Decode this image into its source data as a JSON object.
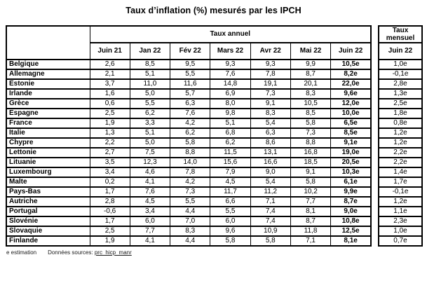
{
  "title": "Taux d’inflation (%) mesurés par les IPCH",
  "table": {
    "annual_header": "Taux annuel",
    "monthly_header": "Taux mensuel",
    "annual_columns": [
      "Juin 21",
      "Jan 22",
      "Fév 22",
      "Mars 22",
      "Avr 22",
      "Mai 22",
      "Juin 22"
    ],
    "monthly_column": "Juin 22",
    "rows": [
      {
        "country": "Belgique",
        "values": [
          "2,6",
          "8,5",
          "9,5",
          "9,3",
          "9,3",
          "9,9",
          "10,5e"
        ],
        "monthly": "1,0e"
      },
      {
        "country": "Allemagne",
        "values": [
          "2,1",
          "5,1",
          "5,5",
          "7,6",
          "7,8",
          "8,7",
          "8,2e"
        ],
        "monthly": "-0,1e"
      },
      {
        "country": "Estonie",
        "values": [
          "3,7",
          "11,0",
          "11,6",
          "14,8",
          "19,1",
          "20,1",
          "22,0e"
        ],
        "monthly": "2,8e"
      },
      {
        "country": "Irlande",
        "values": [
          "1,6",
          "5,0",
          "5,7",
          "6,9",
          "7,3",
          "8,3",
          "9,6e"
        ],
        "monthly": "1,3e"
      },
      {
        "country": "Grèce",
        "values": [
          "0,6",
          "5,5",
          "6,3",
          "8,0",
          "9,1",
          "10,5",
          "12,0e"
        ],
        "monthly": "2,5e"
      },
      {
        "country": "Espagne",
        "values": [
          "2,5",
          "6,2",
          "7,6",
          "9,8",
          "8,3",
          "8,5",
          "10,0e"
        ],
        "monthly": "1,8e"
      },
      {
        "country": "France",
        "values": [
          "1,9",
          "3,3",
          "4,2",
          "5,1",
          "5,4",
          "5,8",
          "6,5e"
        ],
        "monthly": "0,8e"
      },
      {
        "country": "Italie",
        "values": [
          "1,3",
          "5,1",
          "6,2",
          "6,8",
          "6,3",
          "7,3",
          "8,5e"
        ],
        "monthly": "1,2e"
      },
      {
        "country": "Chypre",
        "values": [
          "2,2",
          "5,0",
          "5,8",
          "6,2",
          "8,6",
          "8,8",
          "9,1e"
        ],
        "monthly": "1,2e"
      },
      {
        "country": "Lettonie",
        "values": [
          "2,7",
          "7,5",
          "8,8",
          "11,5",
          "13,1",
          "16,8",
          "19,0e"
        ],
        "monthly": "2,2e"
      },
      {
        "country": "Lituanie",
        "values": [
          "3,5",
          "12,3",
          "14,0",
          "15,6",
          "16,6",
          "18,5",
          "20,5e"
        ],
        "monthly": "2,2e"
      },
      {
        "country": "Luxembourg",
        "values": [
          "3,4",
          "4,6",
          "7,8",
          "7,9",
          "9,0",
          "9,1",
          "10,3e"
        ],
        "monthly": "1,4e"
      },
      {
        "country": "Malte",
        "values": [
          "0,2",
          "4,1",
          "4,2",
          "4,5",
          "5,4",
          "5,8",
          "6,1e"
        ],
        "monthly": "1,7e"
      },
      {
        "country": "Pays-Bas",
        "values": [
          "1,7",
          "7,6",
          "7,3",
          "11,7",
          "11,2",
          "10,2",
          "9,9e"
        ],
        "monthly": "-0,1e"
      },
      {
        "country": "Autriche",
        "values": [
          "2,8",
          "4,5",
          "5,5",
          "6,6",
          "7,1",
          "7,7",
          "8,7e"
        ],
        "monthly": "1,2e"
      },
      {
        "country": "Portugal",
        "values": [
          "-0,6",
          "3,4",
          "4,4",
          "5,5",
          "7,4",
          "8,1",
          "9,0e"
        ],
        "monthly": "1,1e"
      },
      {
        "country": "Slovénie",
        "values": [
          "1,7",
          "6,0",
          "7,0",
          "6,0",
          "7,4",
          "8,7",
          "10,8e"
        ],
        "monthly": "2,3e"
      },
      {
        "country": "Slovaquie",
        "values": [
          "2,5",
          "7,7",
          "8,3",
          "9,6",
          "10,9",
          "11,8",
          "12,5e"
        ],
        "monthly": "1,0e"
      },
      {
        "country": "Finlande",
        "values": [
          "1,9",
          "4,1",
          "4,4",
          "5,8",
          "5,8",
          "7,1",
          "8,1e"
        ],
        "monthly": "0,7e"
      }
    ]
  },
  "footer": {
    "estimation_note": "e estimation",
    "sources_label": "Données sources:",
    "sources_link": "prc_hicp_manr"
  }
}
